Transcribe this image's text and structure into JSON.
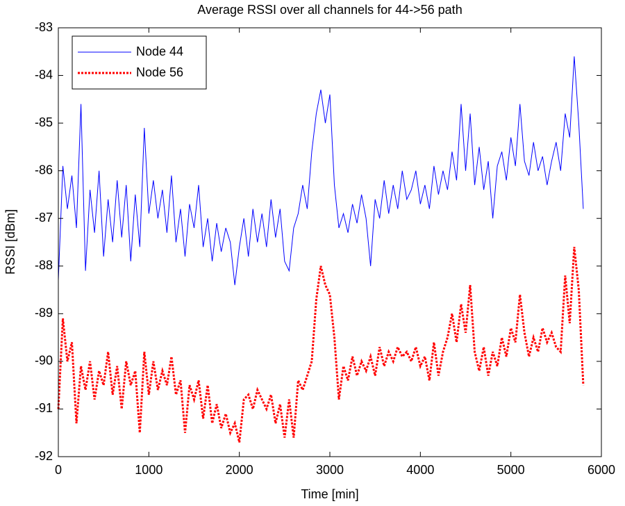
{
  "chart_data": {
    "type": "line",
    "title": "Average RSSI over all channels for 44->56 path",
    "xlabel": "Time [min]",
    "ylabel": "RSSI [dBm]",
    "legend": "northwest",
    "xlim": [
      0,
      6000
    ],
    "xticks": [
      0,
      1000,
      2000,
      3000,
      4000,
      5000,
      6000
    ],
    "ylim": [
      -92,
      -83
    ],
    "yticks": [
      -92,
      -91,
      -90,
      -89,
      -88,
      -87,
      -86,
      -85,
      -84,
      -83
    ],
    "x": [
      0,
      50,
      100,
      150,
      200,
      250,
      300,
      350,
      400,
      450,
      500,
      550,
      600,
      650,
      700,
      750,
      800,
      850,
      900,
      950,
      1000,
      1050,
      1100,
      1150,
      1200,
      1250,
      1300,
      1350,
      1400,
      1450,
      1500,
      1550,
      1600,
      1650,
      1700,
      1750,
      1800,
      1850,
      1900,
      1950,
      2000,
      2050,
      2100,
      2150,
      2200,
      2250,
      2300,
      2350,
      2400,
      2450,
      2500,
      2550,
      2600,
      2650,
      2700,
      2750,
      2800,
      2850,
      2900,
      2950,
      3000,
      3050,
      3100,
      3150,
      3200,
      3250,
      3300,
      3350,
      3400,
      3450,
      3500,
      3550,
      3600,
      3650,
      3700,
      3750,
      3800,
      3850,
      3900,
      3950,
      4000,
      4050,
      4100,
      4150,
      4200,
      4250,
      4300,
      4350,
      4400,
      4450,
      4500,
      4550,
      4600,
      4650,
      4700,
      4750,
      4800,
      4850,
      4900,
      4950,
      5000,
      5050,
      5100,
      5150,
      5200,
      5250,
      5300,
      5350,
      5400,
      5450,
      5500,
      5550,
      5600,
      5650,
      5700,
      5750,
      5800
    ],
    "series": [
      {
        "name": "Node 44",
        "color": "#0000ff",
        "dash": "solid",
        "values": [
          -88.3,
          -85.9,
          -86.8,
          -86.1,
          -87.2,
          -84.6,
          -88.1,
          -86.4,
          -87.3,
          -86.0,
          -87.8,
          -86.6,
          -87.5,
          -86.2,
          -87.4,
          -86.3,
          -87.9,
          -86.5,
          -87.6,
          -85.1,
          -86.9,
          -86.2,
          -87.0,
          -86.4,
          -87.3,
          -86.1,
          -87.5,
          -86.8,
          -87.8,
          -86.7,
          -87.2,
          -86.3,
          -87.6,
          -87.0,
          -87.9,
          -87.1,
          -87.7,
          -87.2,
          -87.5,
          -88.4,
          -87.6,
          -87.0,
          -87.8,
          -86.8,
          -87.5,
          -86.9,
          -87.6,
          -86.6,
          -87.4,
          -86.8,
          -87.9,
          -88.1,
          -87.2,
          -86.9,
          -86.3,
          -86.8,
          -85.6,
          -84.8,
          -84.3,
          -85.0,
          -84.4,
          -86.3,
          -87.2,
          -86.9,
          -87.3,
          -86.7,
          -87.1,
          -86.5,
          -87.0,
          -88.0,
          -86.6,
          -87.0,
          -86.2,
          -86.9,
          -86.3,
          -86.8,
          -86.0,
          -86.6,
          -86.4,
          -86.0,
          -86.7,
          -86.3,
          -86.8,
          -85.9,
          -86.5,
          -86.0,
          -86.4,
          -85.6,
          -86.2,
          -84.6,
          -86.0,
          -84.8,
          -86.3,
          -85.5,
          -86.4,
          -85.8,
          -87.0,
          -85.9,
          -85.6,
          -86.2,
          -85.3,
          -85.9,
          -84.6,
          -85.8,
          -86.1,
          -85.4,
          -86.0,
          -85.7,
          -86.3,
          -85.8,
          -85.4,
          -86.0,
          -84.8,
          -85.3,
          -83.6,
          -85.0,
          -86.8
        ]
      },
      {
        "name": "Node 56",
        "color": "#ff0000",
        "dash": "dotted",
        "values": [
          -91.0,
          -89.1,
          -90.0,
          -89.6,
          -91.3,
          -90.1,
          -90.6,
          -90.0,
          -90.8,
          -90.2,
          -90.5,
          -89.8,
          -90.7,
          -90.1,
          -91.0,
          -90.0,
          -90.5,
          -90.2,
          -91.5,
          -89.8,
          -90.7,
          -90.0,
          -90.6,
          -90.2,
          -90.5,
          -89.9,
          -90.7,
          -90.4,
          -91.5,
          -90.5,
          -90.8,
          -90.4,
          -91.2,
          -90.5,
          -91.3,
          -90.9,
          -91.4,
          -91.1,
          -91.5,
          -91.3,
          -91.7,
          -90.8,
          -90.7,
          -91.0,
          -90.6,
          -90.8,
          -91.0,
          -90.7,
          -91.3,
          -90.9,
          -91.6,
          -90.8,
          -91.6,
          -90.4,
          -90.6,
          -90.3,
          -90.0,
          -88.7,
          -88.0,
          -88.4,
          -88.6,
          -89.5,
          -90.8,
          -90.1,
          -90.4,
          -89.9,
          -90.3,
          -90.0,
          -90.2,
          -89.9,
          -90.3,
          -89.7,
          -90.1,
          -89.8,
          -90.0,
          -89.7,
          -89.9,
          -89.8,
          -90.0,
          -89.7,
          -90.1,
          -89.9,
          -90.4,
          -89.6,
          -90.3,
          -89.8,
          -89.5,
          -89.0,
          -89.6,
          -88.8,
          -89.4,
          -88.4,
          -89.8,
          -90.2,
          -89.7,
          -90.3,
          -89.8,
          -90.1,
          -89.5,
          -89.9,
          -89.3,
          -89.6,
          -88.6,
          -89.4,
          -89.9,
          -89.5,
          -89.8,
          -89.3,
          -89.6,
          -89.4,
          -89.7,
          -89.8,
          -88.2,
          -89.2,
          -87.6,
          -88.5,
          -90.5
        ]
      }
    ]
  }
}
